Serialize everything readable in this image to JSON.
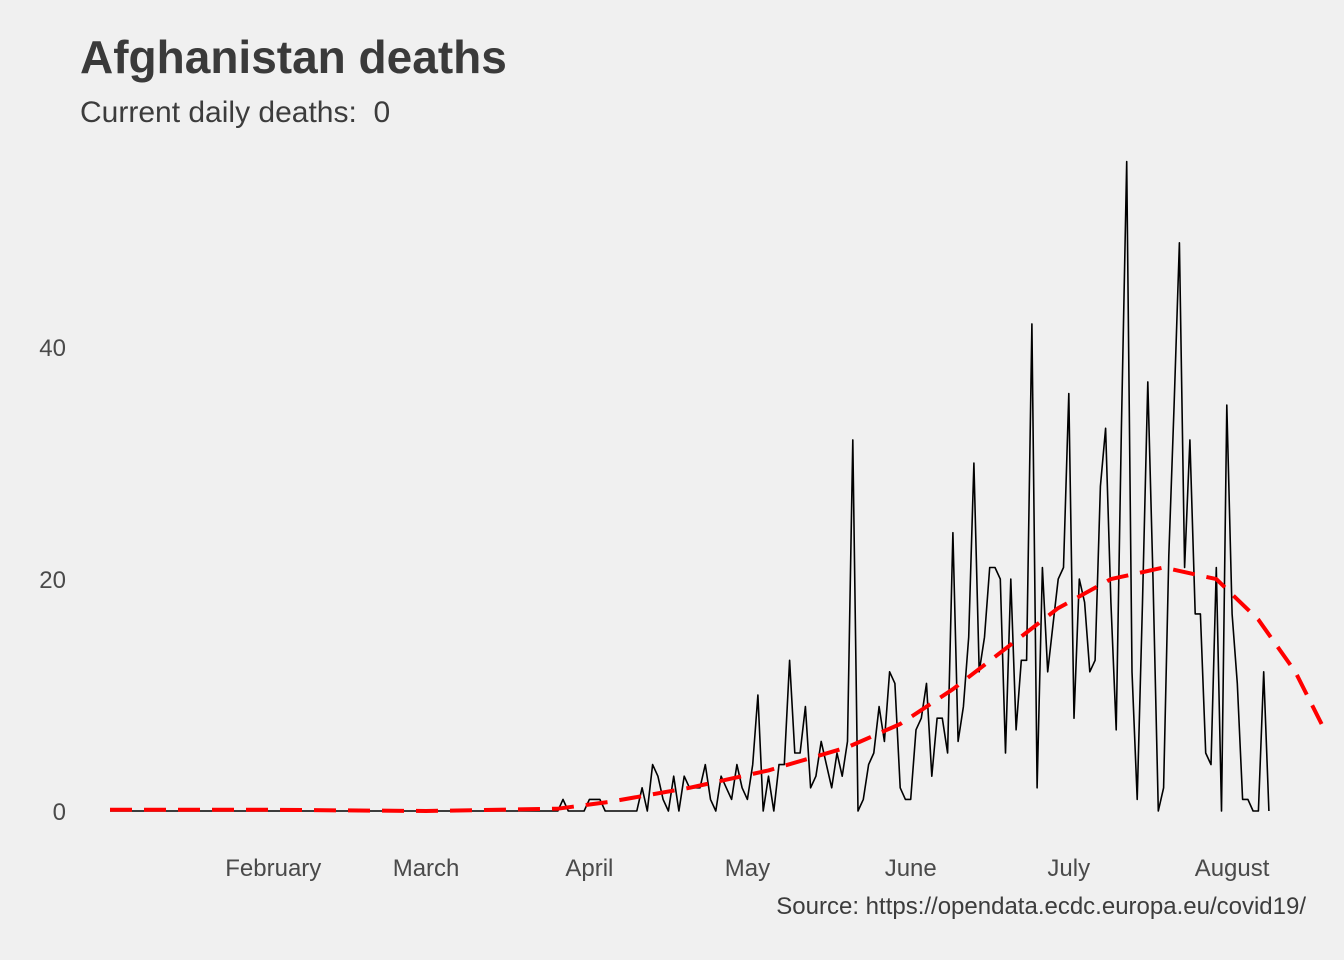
{
  "title": "Afghanistan deaths",
  "subtitle": {
    "label": "Current daily deaths:",
    "value": "0"
  },
  "caption": "Source: https://opendata.ecdc.europa.eu/covid19/",
  "colors": {
    "background": "#f0f0f0",
    "daily_line": "#000000",
    "trend_line": "#ff0000",
    "text": "#3c3c3c"
  },
  "chart_data": {
    "type": "line",
    "title": "Afghanistan deaths",
    "subtitle": "Current daily deaths:  0",
    "xlabel": "",
    "ylabel": "",
    "x_start": "2020-01-01",
    "x_end": "2020-08-08",
    "xlim": [
      "2020-01-01",
      "2020-08-12"
    ],
    "ylim": [
      -2.5,
      57
    ],
    "x_ticks": [
      {
        "label": "February",
        "date": "2020-02-01"
      },
      {
        "label": "March",
        "date": "2020-03-01"
      },
      {
        "label": "April",
        "date": "2020-04-01"
      },
      {
        "label": "May",
        "date": "2020-05-01"
      },
      {
        "label": "June",
        "date": "2020-06-01"
      },
      {
        "label": "July",
        "date": "2020-07-01"
      },
      {
        "label": "August",
        "date": "2020-08-01"
      }
    ],
    "y_ticks": [
      0,
      20,
      40
    ],
    "grid": false,
    "legend": "none",
    "series": [
      {
        "style": "solid",
        "color": "#000000",
        "values": [
          0,
          0,
          0,
          0,
          0,
          0,
          0,
          0,
          0,
          0,
          0,
          0,
          0,
          0,
          0,
          0,
          0,
          0,
          0,
          0,
          0,
          0,
          0,
          0,
          0,
          0,
          0,
          0,
          0,
          0,
          0,
          0,
          0,
          0,
          0,
          0,
          0,
          0,
          0,
          0,
          0,
          0,
          0,
          0,
          0,
          0,
          0,
          0,
          0,
          0,
          0,
          0,
          0,
          0,
          0,
          0,
          0,
          0,
          0,
          0,
          0,
          0,
          0,
          0,
          0,
          0,
          0,
          0,
          0,
          0,
          0,
          0,
          0,
          0,
          0,
          0,
          0,
          0,
          0,
          0,
          0,
          0,
          0,
          0,
          0,
          0,
          1,
          0,
          0,
          0,
          0,
          1,
          1,
          1,
          0,
          0,
          0,
          0,
          0,
          0,
          0,
          2,
          0,
          4,
          3,
          1,
          0,
          3,
          0,
          3,
          2,
          2,
          2,
          4,
          1,
          0,
          3,
          2,
          1,
          4,
          2,
          1,
          4,
          10,
          0,
          3,
          0,
          4,
          4,
          13,
          5,
          5,
          9,
          2,
          3,
          6,
          4,
          2,
          5,
          3,
          6,
          32,
          0,
          1,
          4,
          5,
          9,
          6,
          12,
          11,
          2,
          1,
          1,
          7,
          8,
          11,
          3,
          8,
          8,
          5,
          24,
          6,
          9,
          15,
          30,
          12,
          15,
          21,
          21,
          20,
          5,
          20,
          7,
          13,
          13,
          42,
          2,
          21,
          12,
          16,
          20,
          21,
          36,
          8,
          20,
          18,
          12,
          13,
          28,
          33,
          18,
          7,
          33,
          56,
          12,
          1,
          18,
          37,
          20,
          0,
          2,
          22,
          35,
          49,
          21,
          32,
          17,
          17,
          5,
          4,
          21,
          0,
          35,
          17,
          11,
          1,
          1,
          0,
          0,
          12,
          0
        ]
      },
      {
        "style": "dashed",
        "color": "#ff0000",
        "points": [
          [
            0,
            0.1
          ],
          [
            30,
            0.1
          ],
          [
            60,
            0
          ],
          [
            85,
            0.2
          ],
          [
            95,
            0.8
          ],
          [
            110,
            2
          ],
          [
            125,
            3.5
          ],
          [
            140,
            5.5
          ],
          [
            150,
            7.5
          ],
          [
            160,
            10.5
          ],
          [
            170,
            14
          ],
          [
            180,
            17.5
          ],
          [
            190,
            20
          ],
          [
            200,
            21
          ],
          [
            210,
            20
          ],
          [
            218,
            16.5
          ],
          [
            225,
            12
          ],
          [
            230,
            7.5
          ]
        ]
      }
    ]
  }
}
